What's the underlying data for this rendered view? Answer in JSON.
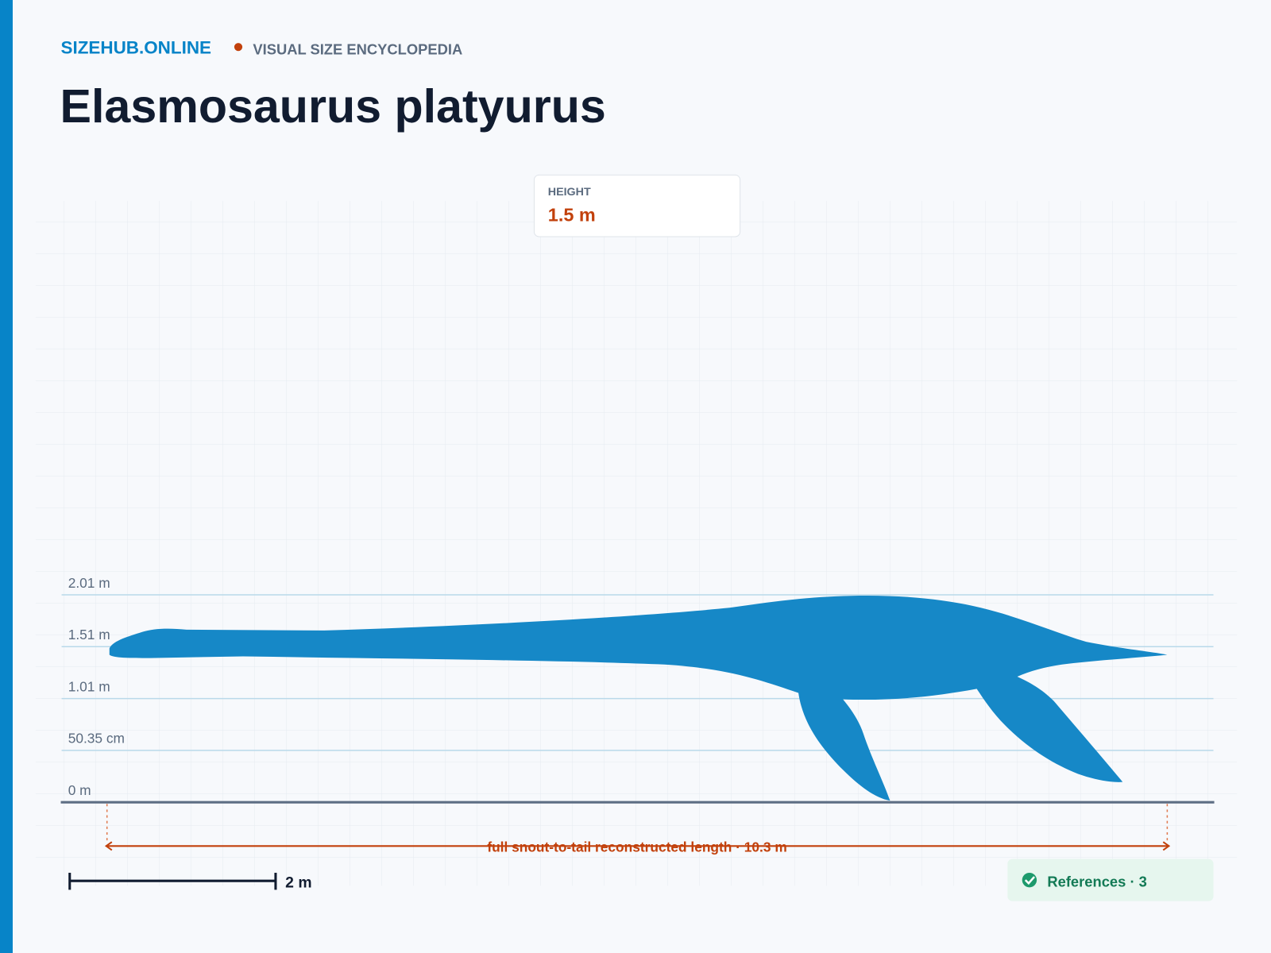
{
  "header": {
    "brand": "SIZEHUB.ONLINE",
    "tagline": "VISUAL SIZE ENCYCLOPEDIA"
  },
  "title": "Elasmosaurus platyurus",
  "height_card": {
    "label": "HEIGHT",
    "value": "1.5 m"
  },
  "scale_labels": [
    "2.01 m",
    "1.51 m",
    "1.01 m",
    "50.35 cm",
    "0 m"
  ],
  "length_annotation": "full snout-to-tail reconstructed length · 10.3 m",
  "scale_bar": "2 m",
  "references": "References · 3"
}
